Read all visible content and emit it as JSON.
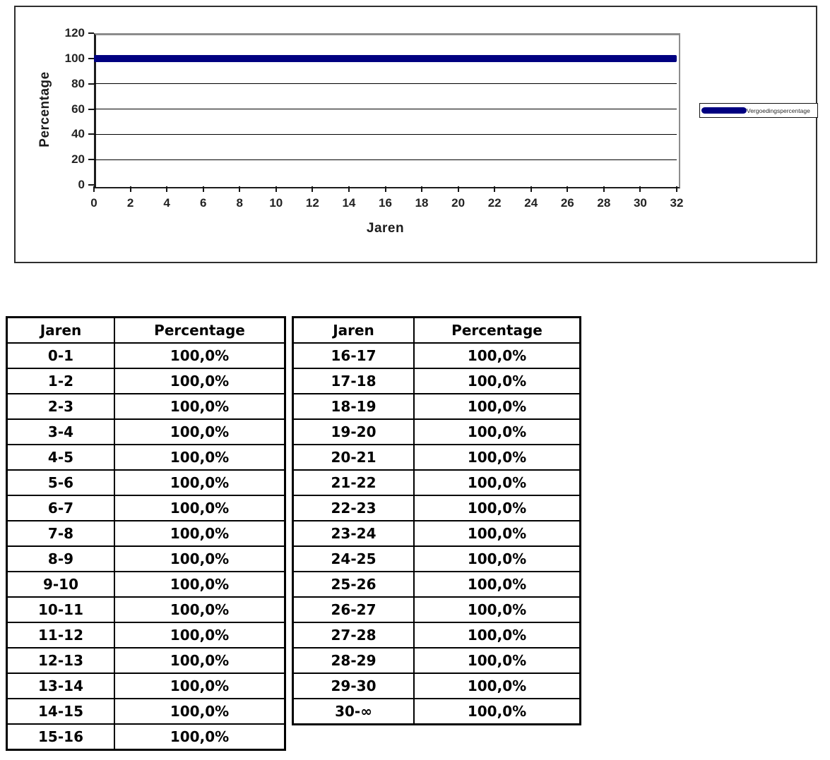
{
  "chart_data": {
    "type": "line",
    "title": "",
    "xlabel": "Jaren",
    "ylabel": "Percentage",
    "xlim": [
      0,
      32
    ],
    "ylim": [
      0,
      120
    ],
    "xticks": [
      0,
      2,
      4,
      6,
      8,
      10,
      12,
      14,
      16,
      18,
      20,
      22,
      24,
      26,
      28,
      30,
      32
    ],
    "yticks": [
      0,
      20,
      40,
      60,
      80,
      100,
      120
    ],
    "grid": true,
    "legend_position": "right",
    "series": [
      {
        "name": "Vergoedingspercentage",
        "color": "#000080",
        "x": [
          0,
          32
        ],
        "values": [
          100,
          100
        ]
      }
    ]
  },
  "tables": [
    {
      "headers": [
        "Jaren",
        "Percentage"
      ],
      "rows": [
        [
          "0-1",
          "100,0%"
        ],
        [
          "1-2",
          "100,0%"
        ],
        [
          "2-3",
          "100,0%"
        ],
        [
          "3-4",
          "100,0%"
        ],
        [
          "4-5",
          "100,0%"
        ],
        [
          "5-6",
          "100,0%"
        ],
        [
          "6-7",
          "100,0%"
        ],
        [
          "7-8",
          "100,0%"
        ],
        [
          "8-9",
          "100,0%"
        ],
        [
          "9-10",
          "100,0%"
        ],
        [
          "10-11",
          "100,0%"
        ],
        [
          "11-12",
          "100,0%"
        ],
        [
          "12-13",
          "100,0%"
        ],
        [
          "13-14",
          "100,0%"
        ],
        [
          "14-15",
          "100,0%"
        ],
        [
          "15-16",
          "100,0%"
        ]
      ]
    },
    {
      "headers": [
        "Jaren",
        "Percentage"
      ],
      "rows": [
        [
          "16-17",
          "100,0%"
        ],
        [
          "17-18",
          "100,0%"
        ],
        [
          "18-19",
          "100,0%"
        ],
        [
          "19-20",
          "100,0%"
        ],
        [
          "20-21",
          "100,0%"
        ],
        [
          "21-22",
          "100,0%"
        ],
        [
          "22-23",
          "100,0%"
        ],
        [
          "23-24",
          "100,0%"
        ],
        [
          "24-25",
          "100,0%"
        ],
        [
          "25-26",
          "100,0%"
        ],
        [
          "26-27",
          "100,0%"
        ],
        [
          "27-28",
          "100,0%"
        ],
        [
          "28-29",
          "100,0%"
        ],
        [
          "29-30",
          "100,0%"
        ],
        [
          "30-∞",
          "100,0%"
        ]
      ]
    }
  ]
}
